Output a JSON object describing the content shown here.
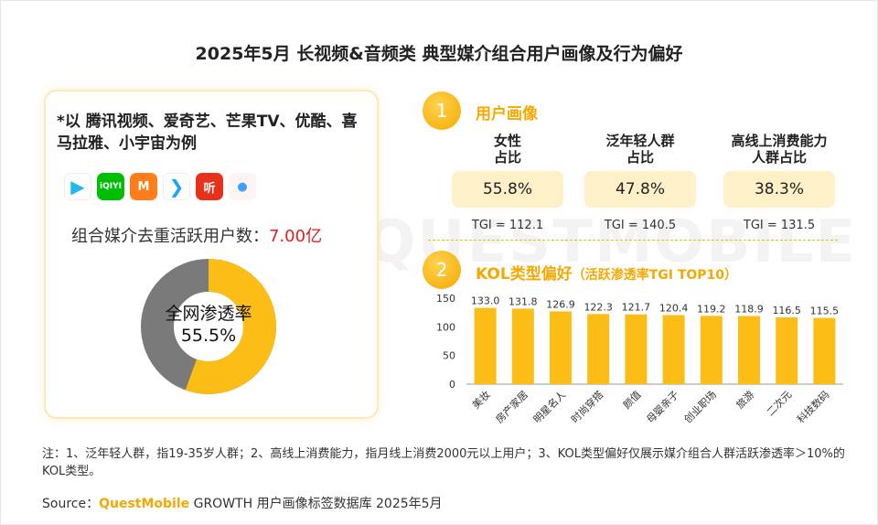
{
  "title": "2025年5月 长视频&音频类 典型媒介组合用户画像及行为偏好",
  "watermark": "QUESTMOBILE",
  "left_card": {
    "intro": "*以 腾讯视频、爱奇艺、芒果TV、优酷、喜马拉雅、小宇宙为例",
    "apps": [
      {
        "name": "腾讯视频",
        "icon": "tencent-video-icon",
        "glyph": "▶",
        "bg": "#ffffff",
        "fg": "#22b8f0"
      },
      {
        "name": "爱奇艺",
        "icon": "iqiyi-icon",
        "glyph": "iQIYI",
        "bg": "#00be06",
        "fg": "#ffffff"
      },
      {
        "name": "芒果TV",
        "icon": "mango-tv-icon",
        "glyph": "M",
        "bg": "#ff7d1a",
        "fg": "#ffffff"
      },
      {
        "name": "优酷",
        "icon": "youku-icon",
        "glyph": "❯",
        "bg": "#ffffff",
        "fg": "#1aa3ff"
      },
      {
        "name": "喜马拉雅",
        "icon": "ximalaya-icon",
        "glyph": "听",
        "bg": "#e8311a",
        "fg": "#ffffff"
      },
      {
        "name": "小宇宙",
        "icon": "xiaoyuzhou-icon",
        "glyph": "●",
        "bg": "#fff4f4",
        "fg": "#3ea0ff"
      }
    ],
    "active_label": "组合媒介去重活跃用户数：",
    "active_value": "7.00亿",
    "penetration_label": "全网渗透率",
    "penetration_value": "55.5%",
    "penetration_fraction": 0.555
  },
  "section1": {
    "number": "1",
    "title": "用户画像",
    "stats": [
      {
        "label": "女性\n占比",
        "value": "55.8%",
        "tgi": "TGI = 112.1"
      },
      {
        "label": "泛年轻人群\n占比",
        "value": "47.8%",
        "tgi": "TGI = 140.5"
      },
      {
        "label": "高线上消费能力\n人群占比",
        "value": "38.3%",
        "tgi": "TGI = 131.5"
      }
    ]
  },
  "section2": {
    "number": "2",
    "title": "KOL类型偏好",
    "title_suffix": "（活跃渗透率TGI TOP10）"
  },
  "chart_data": {
    "type": "bar",
    "title": "KOL类型偏好（活跃渗透率TGI TOP10）",
    "categories": [
      "美妆",
      "房产家居",
      "明星名人",
      "时尚穿搭",
      "颜值",
      "母婴亲子",
      "创业职场",
      "旅游",
      "二次元",
      "科技数码"
    ],
    "values": [
      133.0,
      131.8,
      126.9,
      122.3,
      121.7,
      120.4,
      119.2,
      118.9,
      116.5,
      115.5
    ],
    "value_labels": [
      "133.0",
      "131.8",
      "126.9",
      "122.3",
      "121.7",
      "120.4",
      "119.2",
      "118.9",
      "116.5",
      "115.5"
    ],
    "yticks": [
      "150",
      "100",
      "50",
      "0"
    ],
    "ylim": [
      0,
      150
    ],
    "grid": false,
    "bar_color": "#fbbd16"
  },
  "footnote": "注：1、泛年轻人群，指19-35岁人群；2、高线上消费能力，指月线上消费2000元以上用户；3、KOL类型偏好仅展示媒介组合人群活跃渗透率＞10%的KOL类型。",
  "source": {
    "prefix": "Source：",
    "brand": "QuestMobile",
    "suffix": " GROWTH 用户画像标签数据库 2025年5月"
  },
  "colors": {
    "accent": "#f5a800",
    "highlight": "#e02020",
    "box": "#fff0c8",
    "donut_rest": "#7a7a7a"
  }
}
